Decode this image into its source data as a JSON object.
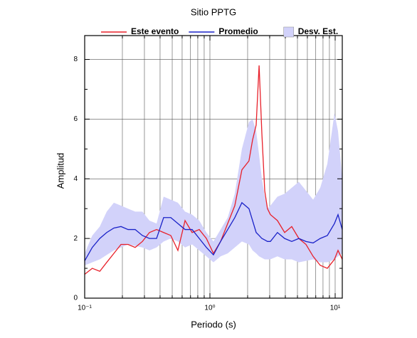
{
  "chart_data": {
    "type": "line",
    "title": "Sitio PPTG",
    "xlabel": "Periodo (s)",
    "ylabel": "Amplitud",
    "xscale": "log",
    "grid": true,
    "legend": "top",
    "xlim": [
      0.1,
      11.4
    ],
    "ylim": [
      0,
      8.8
    ],
    "xticks": [
      {
        "value": 0.1,
        "label": "10⁻¹"
      },
      {
        "value": 1,
        "label": "10⁰"
      },
      {
        "value": 10,
        "label": "10¹"
      }
    ],
    "xminorticks": [
      0.2,
      0.3,
      0.4,
      0.5,
      0.6,
      0.7,
      0.8,
      0.9,
      2,
      3,
      4,
      5,
      6,
      7,
      8,
      9
    ],
    "yticks": [
      0,
      2,
      4,
      6,
      8
    ],
    "yminorticks": [
      1,
      3,
      5,
      7
    ],
    "x": [
      0.1,
      0.115,
      0.132,
      0.15,
      0.171,
      0.195,
      0.222,
      0.253,
      0.289,
      0.329,
      0.375,
      0.427,
      0.487,
      0.555,
      0.633,
      0.721,
      0.822,
      0.937,
      1.067,
      1.217,
      1.387,
      1.58,
      1.8,
      2.05,
      2.19,
      2.34,
      2.47,
      2.6,
      2.74,
      2.88,
      3.04,
      3.46,
      3.95,
      4.5,
      5.13,
      5.85,
      6.67,
      7.6,
      8.66,
      9.87,
      10.54,
      11.4
    ],
    "series": [
      {
        "name": "Este evento",
        "color": "#e8202a",
        "values": [
          0.8,
          1.0,
          0.9,
          1.2,
          1.5,
          1.8,
          1.8,
          1.7,
          1.9,
          2.2,
          2.3,
          2.2,
          2.1,
          1.6,
          2.6,
          2.2,
          2.3,
          2.0,
          1.5,
          1.9,
          2.5,
          3.1,
          4.3,
          4.6,
          5.3,
          5.8,
          7.8,
          5.5,
          3.6,
          3.0,
          2.8,
          2.6,
          2.2,
          2.4,
          2.0,
          1.8,
          1.4,
          1.1,
          1.0,
          1.3,
          1.6,
          1.3
        ]
      },
      {
        "name": "Promedio",
        "color": "#1a22c8",
        "values": [
          1.25,
          1.7,
          2.0,
          2.2,
          2.35,
          2.4,
          2.3,
          2.3,
          2.1,
          2.0,
          2.0,
          2.7,
          2.7,
          2.5,
          2.3,
          2.3,
          2.0,
          1.7,
          1.45,
          1.9,
          2.3,
          2.7,
          3.2,
          3.0,
          2.6,
          2.2,
          2.1,
          2.0,
          1.95,
          1.9,
          1.9,
          2.2,
          2.0,
          1.9,
          2.0,
          1.9,
          1.85,
          2.0,
          2.1,
          2.5,
          2.8,
          2.3
        ]
      },
      {
        "name": "Desv. Est.",
        "color": "#d2d2fa",
        "band": true,
        "low": [
          1.1,
          1.2,
          1.3,
          1.45,
          1.6,
          1.7,
          1.8,
          1.75,
          1.7,
          1.6,
          1.7,
          1.9,
          2.0,
          1.9,
          1.7,
          1.8,
          1.6,
          1.4,
          1.2,
          1.4,
          1.5,
          1.7,
          1.9,
          1.8,
          1.6,
          1.5,
          1.4,
          1.35,
          1.3,
          1.3,
          1.3,
          1.4,
          1.3,
          1.3,
          1.2,
          1.25,
          1.3,
          1.2,
          1.2,
          1.3,
          1.4,
          1.5
        ],
        "high": [
          1.5,
          2.1,
          2.4,
          2.9,
          3.2,
          3.1,
          3.0,
          2.9,
          2.9,
          2.6,
          2.5,
          3.4,
          3.3,
          3.2,
          2.9,
          2.8,
          2.6,
          2.2,
          1.9,
          2.3,
          2.7,
          3.5,
          5.0,
          5.9,
          6.0,
          5.6,
          4.8,
          4.0,
          3.4,
          3.0,
          3.1,
          3.4,
          3.5,
          3.7,
          3.9,
          3.6,
          3.3,
          3.7,
          4.5,
          6.2,
          5.6,
          4.0
        ]
      }
    ]
  }
}
